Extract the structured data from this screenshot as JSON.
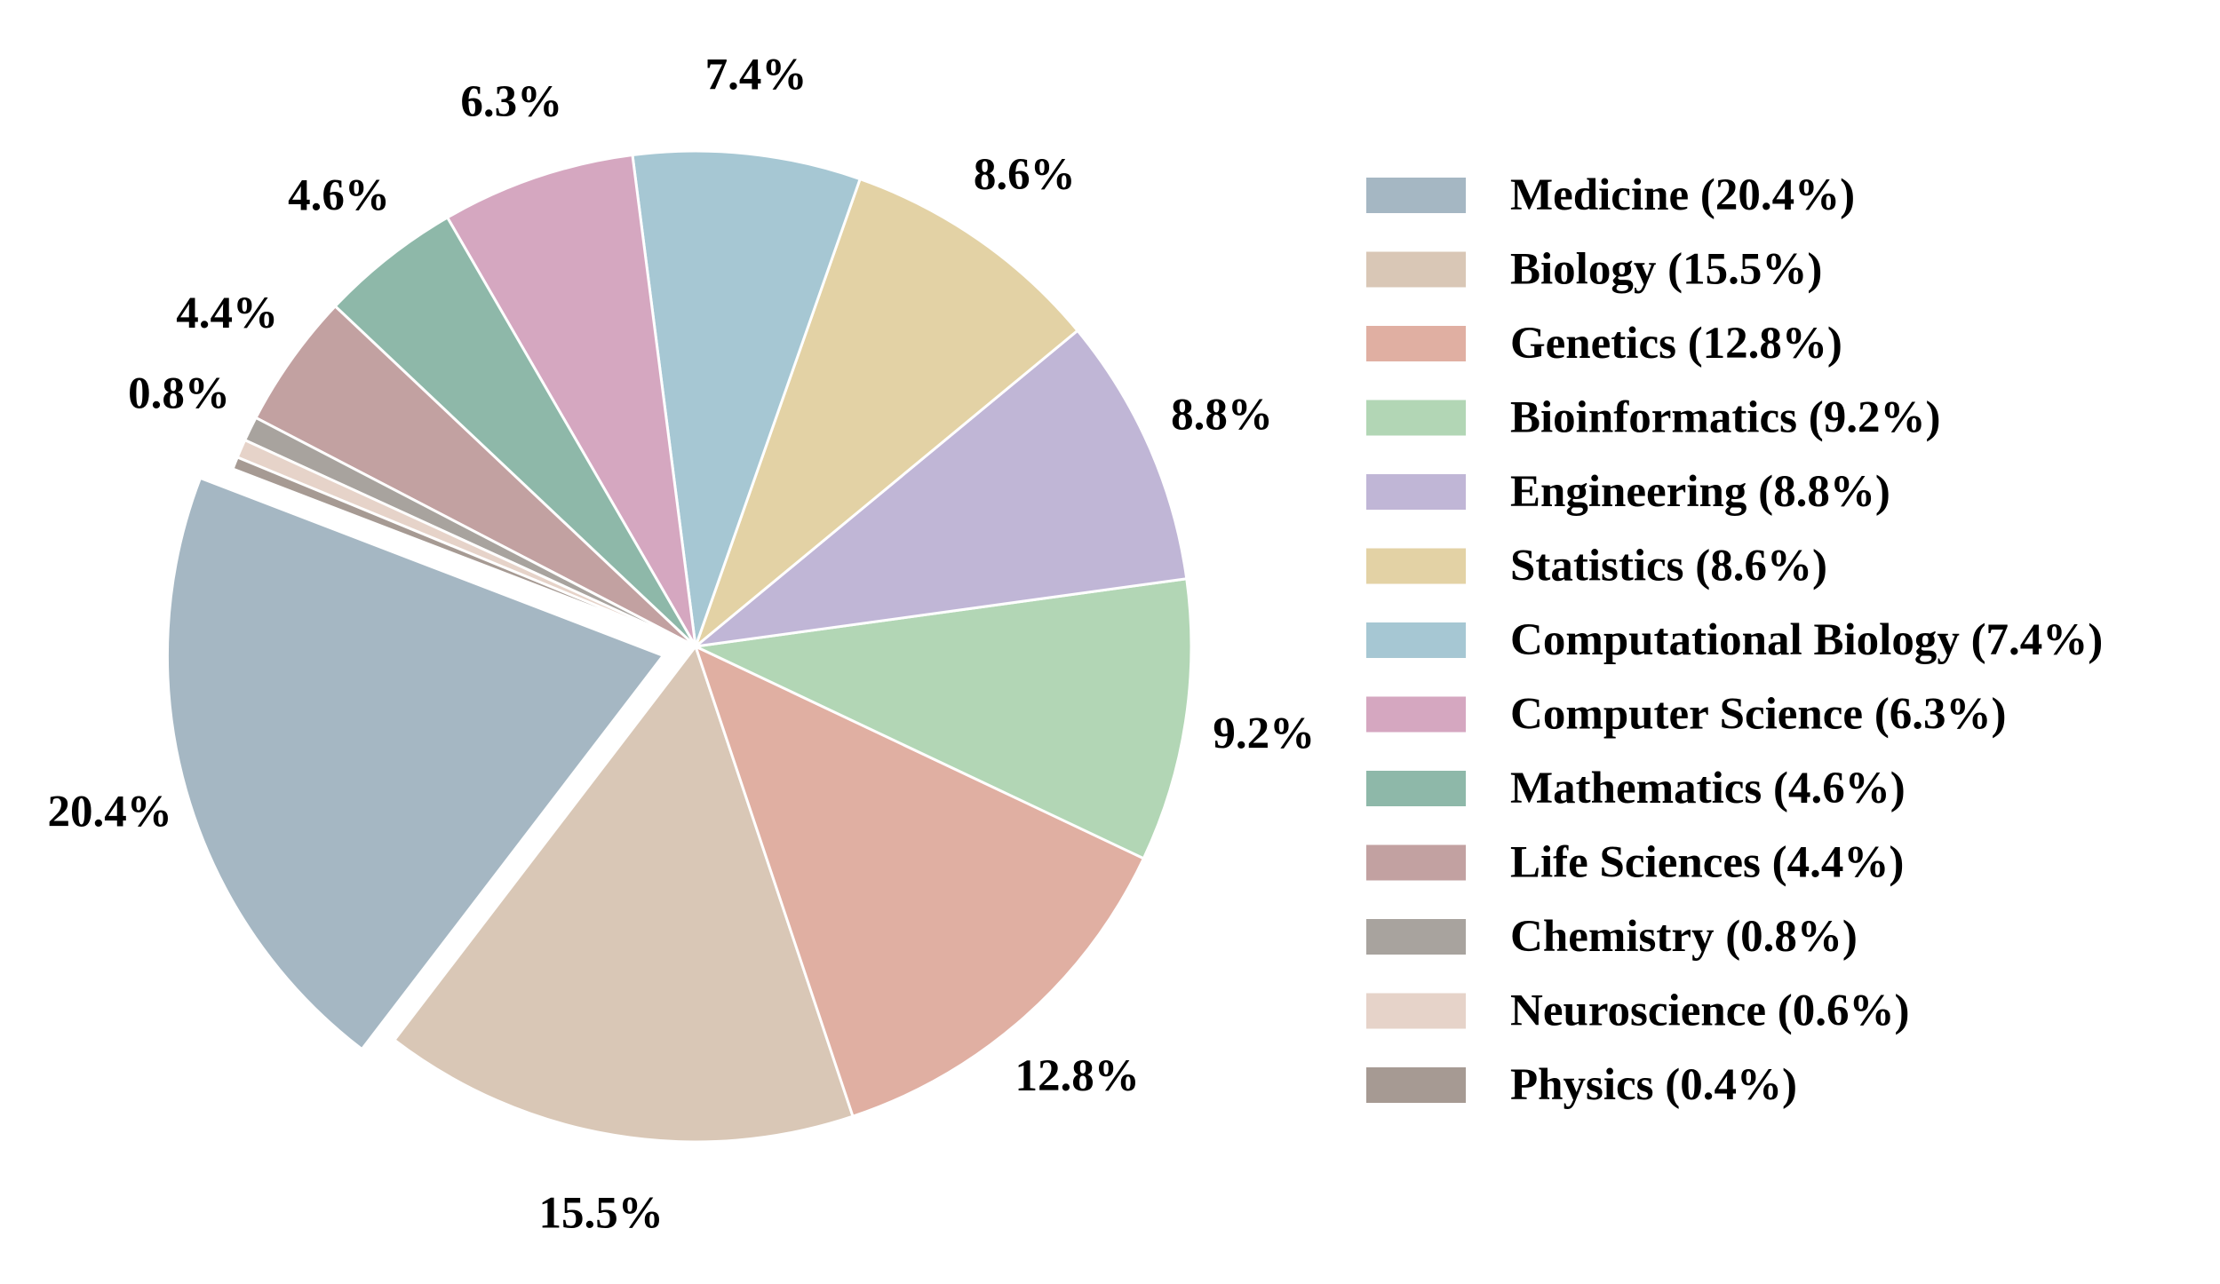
{
  "chart_data": {
    "type": "pie",
    "title": "",
    "start_angle_deg": 159,
    "direction": "counterclockwise",
    "exploded": [
      "Medicine"
    ],
    "slice_edge_color": "#ffffff",
    "legend_position": "right",
    "slices": [
      {
        "name": "Medicine",
        "value": 20.4,
        "label": "20.4%",
        "legend": "Medicine (20.4%)",
        "color": "#a5b7c3"
      },
      {
        "name": "Biology",
        "value": 15.5,
        "label": "15.5%",
        "legend": "Biology (15.5%)",
        "color": "#d9c7b6"
      },
      {
        "name": "Genetics",
        "value": 12.8,
        "label": "12.8%",
        "legend": "Genetics (12.8%)",
        "color": "#e0afa2"
      },
      {
        "name": "Bioinformatics",
        "value": 9.2,
        "label": "9.2%",
        "legend": "Bioinformatics (9.2%)",
        "color": "#b2d6b5"
      },
      {
        "name": "Engineering",
        "value": 8.8,
        "label": "8.8%",
        "legend": "Engineering (8.8%)",
        "color": "#c0b6d6"
      },
      {
        "name": "Statistics",
        "value": 8.6,
        "label": "8.6%",
        "legend": "Statistics (8.6%)",
        "color": "#e3d2a5"
      },
      {
        "name": "Computational Biology",
        "value": 7.4,
        "label": "7.4%",
        "legend": "Computational Biology (7.4%)",
        "color": "#a6c7d3"
      },
      {
        "name": "Computer Science",
        "value": 6.3,
        "label": "6.3%",
        "legend": "Computer Science (6.3%)",
        "color": "#d5a7c0"
      },
      {
        "name": "Mathematics",
        "value": 4.6,
        "label": "4.6%",
        "legend": "Mathematics (4.6%)",
        "color": "#8eb8a9"
      },
      {
        "name": "Life Sciences",
        "value": 4.4,
        "label": "4.4%",
        "legend": "Life Sciences (4.4%)",
        "color": "#c2a1a1"
      },
      {
        "name": "Chemistry",
        "value": 0.8,
        "label": "0.8%",
        "legend": "Chemistry (0.8%)",
        "color": "#a8a39e"
      },
      {
        "name": "Neuroscience",
        "value": 0.6,
        "label": "",
        "legend": "Neuroscience (0.6%)",
        "color": "#e6d3c9"
      },
      {
        "name": "Physics",
        "value": 0.4,
        "label": "",
        "legend": "Physics (0.4%)",
        "color": "#a69a93"
      }
    ]
  }
}
